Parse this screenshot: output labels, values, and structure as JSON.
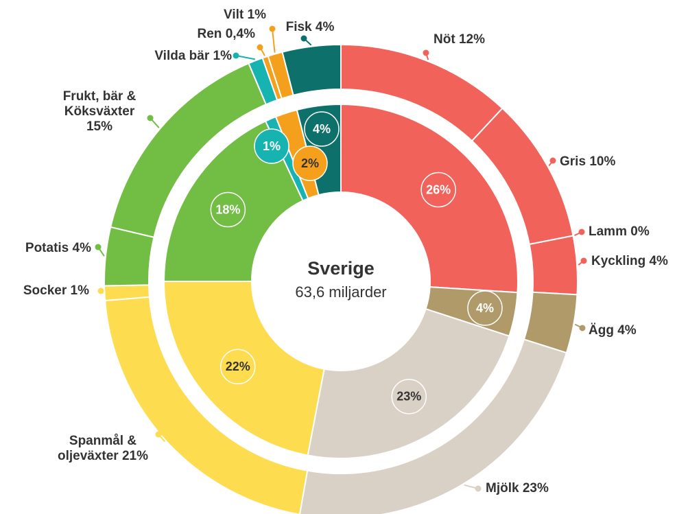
{
  "chart_data": {
    "type": "sunburst",
    "center_title": "Sverige",
    "center_subtitle": "63,6 miljarder",
    "inner": {
      "values": [
        26,
        4,
        23,
        22,
        18,
        1,
        2,
        4
      ],
      "value_labels": [
        "26%",
        "4%",
        "23%",
        "22%",
        "18%",
        "1%",
        "2%",
        "4%"
      ],
      "colors": [
        "#f0625a",
        "#b09a6a",
        "#d9d1c6",
        "#fddc4f",
        "#72bd44",
        "#17b3b1",
        "#f5a01d",
        "#0e706a"
      ]
    },
    "outer": {
      "names": [
        "Nöt",
        "Gris",
        "Lamm",
        "Kyckling",
        "Ägg",
        "Mjölk",
        "Spanmål & oljeväxter",
        "Socker",
        "Potatis",
        "Frukt, bär & Köksväxter",
        "Vilda bär",
        "Ren",
        "Vilt",
        "Fisk"
      ],
      "values": [
        12,
        10,
        0,
        4,
        4,
        23,
        21,
        1,
        4,
        15,
        1,
        0.4,
        1,
        4
      ],
      "value_labels": [
        "12%",
        "10%",
        "0%",
        "4%",
        "4%",
        "23%",
        "21%",
        "1%",
        "4%",
        "15%",
        "1%",
        "0,4%",
        "1%",
        "4%"
      ],
      "colors": [
        "#f0625a",
        "#f0625a",
        "#f0625a",
        "#f0625a",
        "#b09a6a",
        "#d9d1c6",
        "#fddc4f",
        "#fddc4f",
        "#72bd44",
        "#72bd44",
        "#17b3b1",
        "#f5a01d",
        "#f5a01d",
        "#0e706a"
      ]
    }
  }
}
